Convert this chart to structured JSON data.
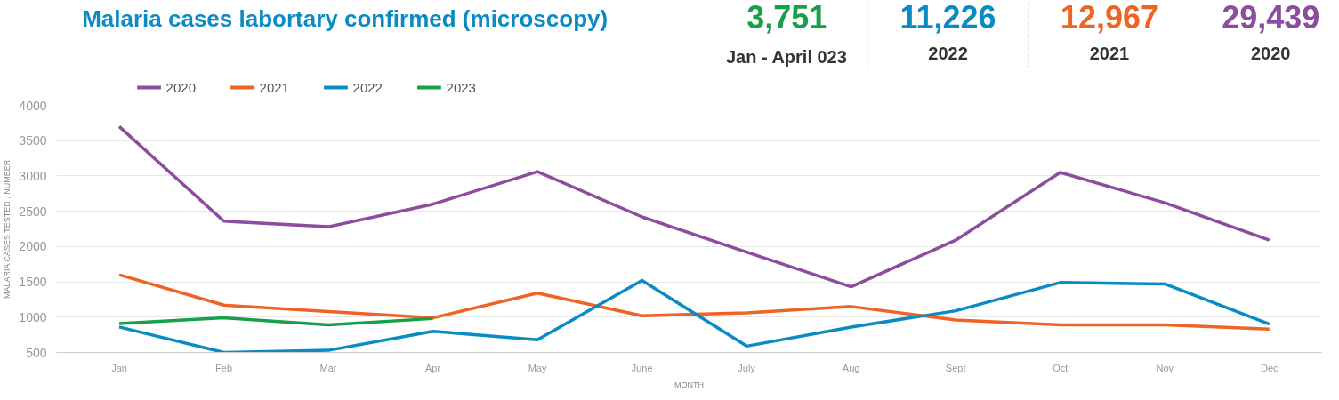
{
  "chart_data": {
    "type": "line",
    "title": "Malaria cases labortary confirmed (microscopy)",
    "xlabel": "MONTH",
    "ylabel": "MALARIA CASES TESTED , NUMBER",
    "categories": [
      "Jan",
      "Feb",
      "Mar",
      "Apr",
      "May",
      "June",
      "July",
      "Aug",
      "Sept",
      "Oct",
      "Nov",
      "Dec"
    ],
    "series": [
      {
        "name": "2020",
        "color": "#8e4c9e",
        "values": [
          3700,
          2360,
          2280,
          2600,
          3060,
          2420,
          1920,
          1430,
          2090,
          3050,
          2620,
          2090
        ]
      },
      {
        "name": "2021",
        "color": "#ee6424",
        "values": [
          1600,
          1170,
          1080,
          990,
          1340,
          1020,
          1060,
          1150,
          960,
          890,
          890,
          830
        ]
      },
      {
        "name": "2022",
        "color": "#0a8bc4",
        "values": [
          860,
          500,
          530,
          800,
          680,
          1520,
          590,
          860,
          1090,
          1490,
          1470,
          900
        ]
      },
      {
        "name": "2023",
        "color": "#17a04a",
        "values": [
          910,
          990,
          890,
          980,
          null,
          null,
          null,
          null,
          null,
          null,
          null,
          null
        ]
      }
    ],
    "ylim": [
      500,
      4000
    ],
    "yticks": [
      500,
      1000,
      1500,
      2000,
      2500,
      3000,
      3500,
      4000
    ],
    "grid": "y",
    "legend": "top left",
    "marker": "none",
    "line_style": "solid",
    "annotations": [
      "3,751",
      "Jan - April 023",
      "11,226",
      "2022",
      "12,967",
      "2021",
      "29,439",
      "2020"
    ]
  }
}
